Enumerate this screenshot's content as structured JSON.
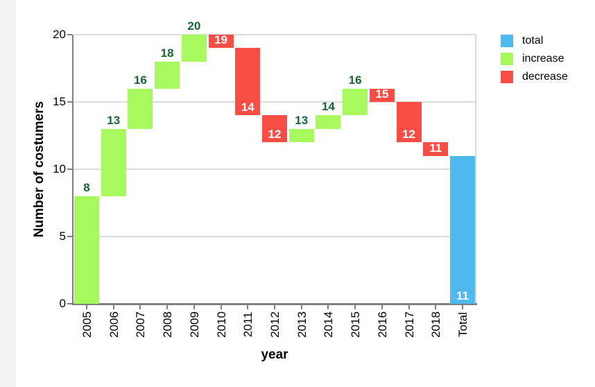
{
  "page": {
    "background_color": "#ffffff",
    "left_strip_color": "#f1f1f1"
  },
  "chart_data": {
    "type": "bar",
    "subtype": "waterfall",
    "title": "",
    "xlabel": "year",
    "ylabel": "Number of costumers",
    "ylim": [
      0,
      20
    ],
    "y_ticks": [
      0,
      5,
      10,
      15,
      20
    ],
    "grid": true,
    "legend_position": "top-right",
    "categories": [
      "2005",
      "2006",
      "2007",
      "2008",
      "2009",
      "2010",
      "2011",
      "2012",
      "2013",
      "2014",
      "2015",
      "2016",
      "2017",
      "2018",
      "Total"
    ],
    "bars": [
      {
        "category": "2005",
        "kind": "increase",
        "start": 0,
        "end": 8,
        "label": "8"
      },
      {
        "category": "2006",
        "kind": "increase",
        "start": 8,
        "end": 13,
        "label": "13"
      },
      {
        "category": "2007",
        "kind": "increase",
        "start": 13,
        "end": 16,
        "label": "16"
      },
      {
        "category": "2008",
        "kind": "increase",
        "start": 16,
        "end": 18,
        "label": "18"
      },
      {
        "category": "2009",
        "kind": "increase",
        "start": 18,
        "end": 20,
        "label": "20"
      },
      {
        "category": "2010",
        "kind": "decrease",
        "start": 20,
        "end": 19,
        "label": "19"
      },
      {
        "category": "2011",
        "kind": "decrease",
        "start": 19,
        "end": 14,
        "label": "14"
      },
      {
        "category": "2012",
        "kind": "decrease",
        "start": 14,
        "end": 12,
        "label": "12"
      },
      {
        "category": "2013",
        "kind": "increase",
        "start": 12,
        "end": 13,
        "label": "13"
      },
      {
        "category": "2014",
        "kind": "increase",
        "start": 13,
        "end": 14,
        "label": "14"
      },
      {
        "category": "2015",
        "kind": "increase",
        "start": 14,
        "end": 16,
        "label": "16"
      },
      {
        "category": "2016",
        "kind": "decrease",
        "start": 16,
        "end": 15,
        "label": "15"
      },
      {
        "category": "2017",
        "kind": "decrease",
        "start": 15,
        "end": 12,
        "label": "12"
      },
      {
        "category": "2018",
        "kind": "decrease",
        "start": 12,
        "end": 11,
        "label": "11"
      },
      {
        "category": "Total",
        "kind": "total",
        "start": 0,
        "end": 11,
        "label": "11"
      }
    ],
    "legend": [
      {
        "label": "total",
        "color": "#4db9ec"
      },
      {
        "label": "increase",
        "color": "#a8f95f"
      },
      {
        "label": "decrease",
        "color": "#f94e46"
      }
    ],
    "colors": {
      "total": "#4db9ec",
      "increase": "#a8f95f",
      "decrease": "#f94e46",
      "increase_label_text": "#176632",
      "inside_label_text": "#ffffff",
      "gridline": "#dcdcdc",
      "axis": "#7f7f7f"
    }
  }
}
